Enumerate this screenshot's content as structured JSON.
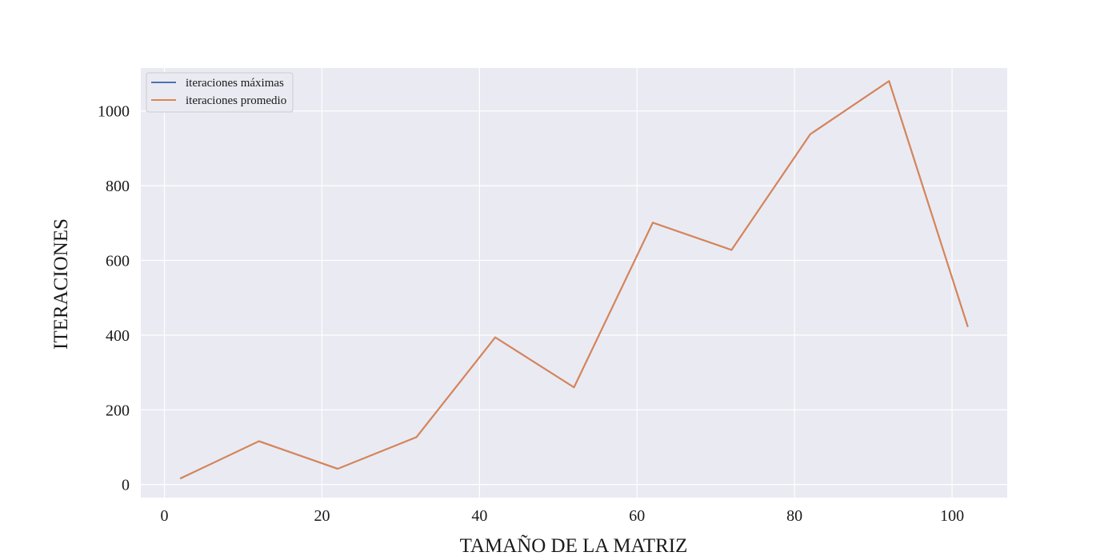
{
  "chart_data": {
    "type": "line",
    "xlabel": "TAMAÑO DE LA MATRIZ",
    "ylabel": "ITERACIONES",
    "xlim": [
      -3,
      107
    ],
    "ylim": [
      -35,
      1115
    ],
    "xticks": [
      0,
      20,
      40,
      60,
      80,
      100
    ],
    "yticks": [
      0,
      200,
      400,
      600,
      800,
      1000
    ],
    "grid": true,
    "legend_position": "upper-left",
    "x": [
      2,
      12,
      22,
      32,
      42,
      52,
      62,
      72,
      82,
      92,
      102
    ],
    "series": [
      {
        "name": "iteraciones máximas",
        "color": "#4c72b0",
        "values": [
          16,
          116,
          42,
          127,
          394,
          260,
          701,
          628,
          938,
          1080,
          422
        ]
      },
      {
        "name": "iteraciones promedio",
        "color": "#dd8452",
        "values": [
          16,
          116,
          42,
          127,
          394,
          260,
          701,
          628,
          938,
          1080,
          422
        ]
      }
    ]
  }
}
